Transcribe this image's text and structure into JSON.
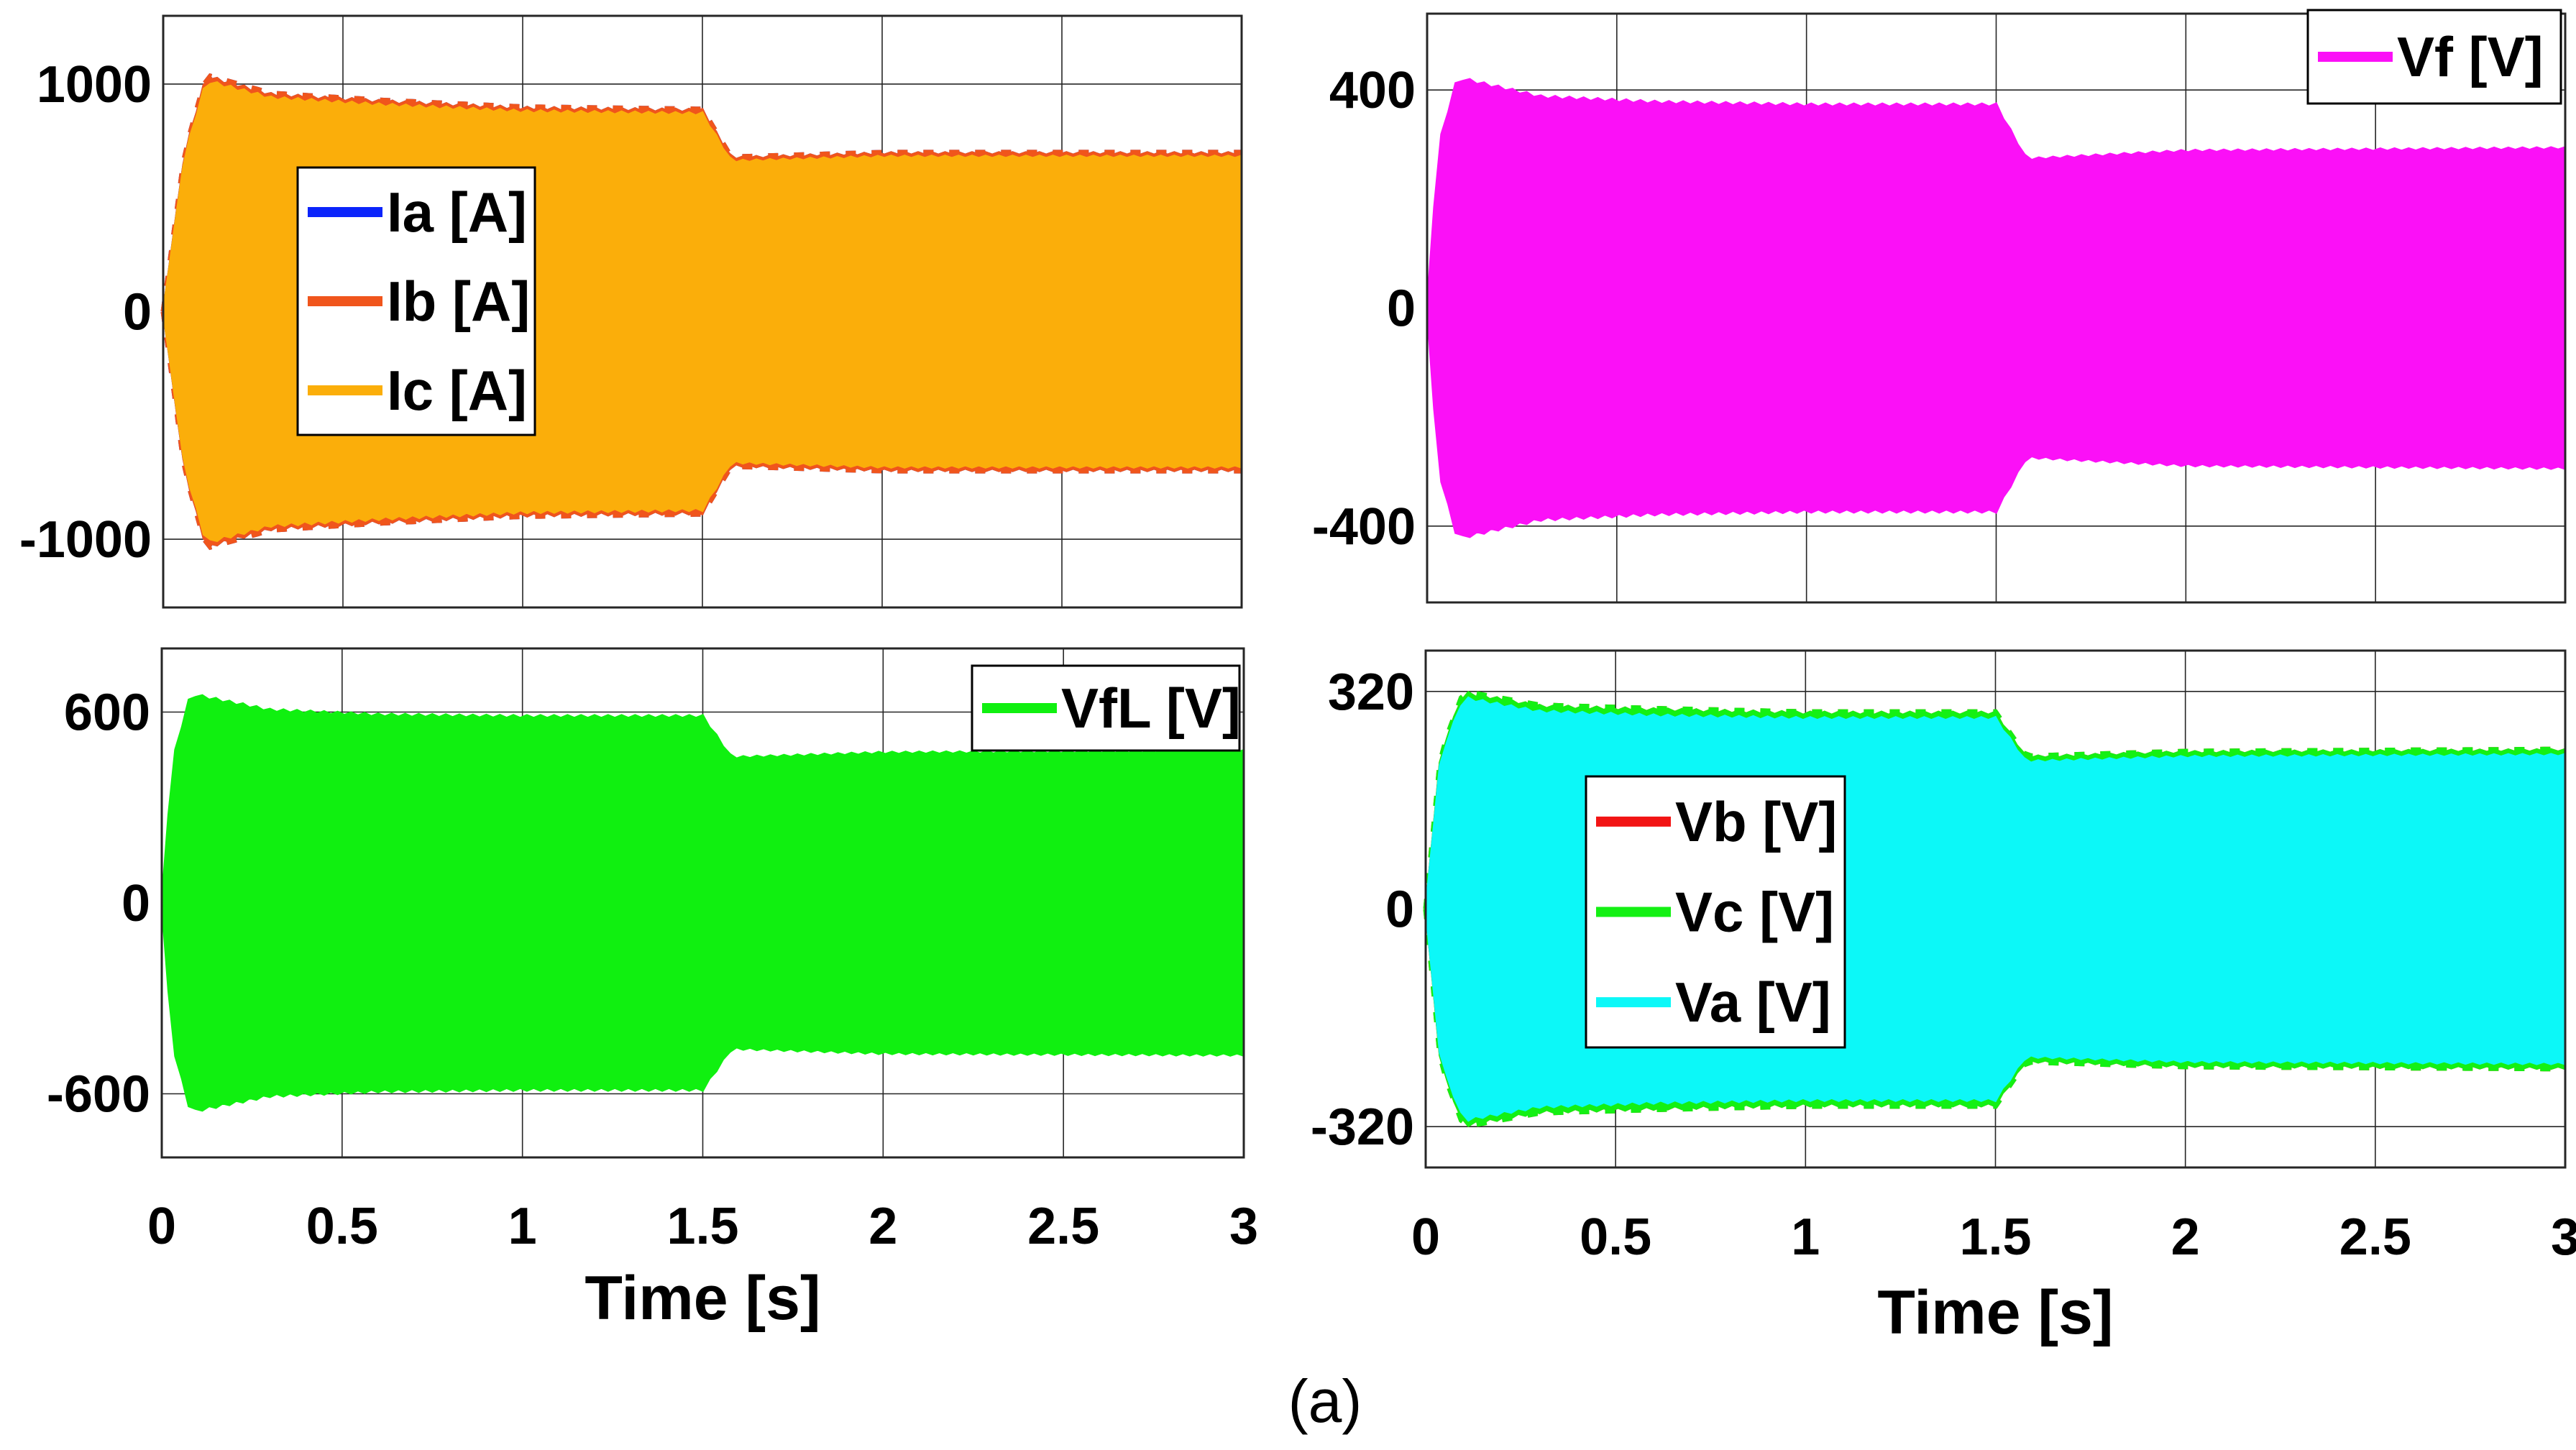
{
  "figure_caption": "(a)",
  "chart_data": [
    {
      "type": "line",
      "name": "phase-currents",
      "title": "",
      "xlabel": "",
      "ylabel": "",
      "xlim": [
        0,
        3
      ],
      "ylim": [
        -1300,
        1300
      ],
      "xticks": [
        0,
        0.5,
        1,
        1.5,
        2,
        2.5,
        3
      ],
      "xtick_labels": [],
      "yticks": [
        -1000,
        0,
        1000
      ],
      "ytick_labels": [
        "-1000",
        "0",
        "1000"
      ],
      "grid": true,
      "legend_position": "center-left",
      "series": [
        {
          "name": "Ia [A]",
          "color": "#0b24fb",
          "envelope": [
            [
              0,
              0
            ],
            [
              0.06,
              700
            ],
            [
              0.12,
              1040
            ],
            [
              0.3,
              960
            ],
            [
              0.6,
              930
            ],
            [
              1.0,
              900
            ],
            [
              1.5,
              890
            ],
            [
              1.58,
              680
            ],
            [
              2.0,
              700
            ],
            [
              3.0,
              700
            ]
          ]
        },
        {
          "name": "Ib [A]",
          "color": "#f0551c",
          "envelope": [
            [
              0,
              0
            ],
            [
              0.06,
              700
            ],
            [
              0.12,
              1040
            ],
            [
              0.3,
              960
            ],
            [
              0.6,
              930
            ],
            [
              1.0,
              900
            ],
            [
              1.5,
              890
            ],
            [
              1.58,
              680
            ],
            [
              2.0,
              700
            ],
            [
              3.0,
              700
            ]
          ]
        },
        {
          "name": "Ic [A]",
          "color": "#fbae0a",
          "envelope": [
            [
              0,
              0
            ],
            [
              0.06,
              690
            ],
            [
              0.12,
              1020
            ],
            [
              0.3,
              945
            ],
            [
              0.6,
              915
            ],
            [
              1.0,
              885
            ],
            [
              1.5,
              875
            ],
            [
              1.58,
              665
            ],
            [
              2.0,
              685
            ],
            [
              3.0,
              685
            ]
          ]
        }
      ]
    },
    {
      "type": "line",
      "name": "filter-voltage-vf",
      "title": "",
      "xlabel": "",
      "ylabel": "",
      "xlim": [
        0,
        3
      ],
      "ylim": [
        -540,
        540
      ],
      "xticks": [
        0,
        0.5,
        1,
        1.5,
        2,
        2.5,
        3
      ],
      "xtick_labels": [],
      "yticks": [
        -400,
        0,
        400
      ],
      "ytick_labels": [
        "-400",
        "0",
        "400"
      ],
      "grid": true,
      "legend_position": "top-right",
      "series": [
        {
          "name": "Vf [V]",
          "color": "#fb10f7",
          "envelope": [
            [
              0,
              0
            ],
            [
              0.03,
              300
            ],
            [
              0.08,
              425
            ],
            [
              0.3,
              390
            ],
            [
              0.6,
              380
            ],
            [
              1.0,
              375
            ],
            [
              1.5,
              375
            ],
            [
              1.58,
              275
            ],
            [
              2.0,
              290
            ],
            [
              3.0,
              295
            ]
          ]
        }
      ]
    },
    {
      "type": "line",
      "name": "line-voltage-vfl",
      "title": "",
      "xlabel": "Time [s]",
      "ylabel": "",
      "xlim": [
        0,
        3
      ],
      "ylim": [
        -800,
        800
      ],
      "xticks": [
        0,
        0.5,
        1,
        1.5,
        2,
        2.5,
        3
      ],
      "xtick_labels": [
        "0",
        "0.5",
        "1",
        "1.5",
        "2",
        "2.5",
        "3"
      ],
      "yticks": [
        -600,
        0,
        600
      ],
      "ytick_labels": [
        "-600",
        "0",
        "600"
      ],
      "grid": true,
      "legend_position": "top-right",
      "series": [
        {
          "name": "VfL [V]",
          "color": "#10f010",
          "envelope": [
            [
              0,
              0
            ],
            [
              0.03,
              450
            ],
            [
              0.08,
              660
            ],
            [
              0.3,
              610
            ],
            [
              0.6,
              595
            ],
            [
              1.0,
              590
            ],
            [
              1.5,
              590
            ],
            [
              1.58,
              460
            ],
            [
              2.0,
              475
            ],
            [
              3.0,
              480
            ]
          ]
        }
      ]
    },
    {
      "type": "line",
      "name": "phase-voltages",
      "title": "",
      "xlabel": "Time [s]",
      "ylabel": "",
      "xlim": [
        0,
        3
      ],
      "ylim": [
        -380,
        380
      ],
      "xticks": [
        0,
        0.5,
        1,
        1.5,
        2,
        2.5,
        3
      ],
      "xtick_labels": [
        "0",
        "0.5",
        "1",
        "1.5",
        "2",
        "2.5",
        "3"
      ],
      "yticks": [
        -320,
        0,
        320
      ],
      "ytick_labels": [
        "-320",
        "0",
        "320"
      ],
      "grid": true,
      "legend_position": "center-left",
      "series": [
        {
          "name": "Vb [V]",
          "color": "#f21414",
          "envelope": [
            [
              0,
              0
            ],
            [
              0.04,
              230
            ],
            [
              0.1,
              320
            ],
            [
              0.3,
              300
            ],
            [
              0.6,
              295
            ],
            [
              1.0,
              290
            ],
            [
              1.5,
              290
            ],
            [
              1.58,
              225
            ],
            [
              2.0,
              232
            ],
            [
              3.0,
              235
            ]
          ]
        },
        {
          "name": "Vc [V]",
          "color": "#14f014",
          "envelope": [
            [
              0,
              0
            ],
            [
              0.04,
              230
            ],
            [
              0.1,
              320
            ],
            [
              0.3,
              300
            ],
            [
              0.6,
              295
            ],
            [
              1.0,
              290
            ],
            [
              1.5,
              290
            ],
            [
              1.58,
              225
            ],
            [
              2.0,
              232
            ],
            [
              3.0,
              235
            ]
          ]
        },
        {
          "name": "Va [V]",
          "color": "#0cf8f8",
          "envelope": [
            [
              0,
              0
            ],
            [
              0.04,
              225
            ],
            [
              0.1,
              312
            ],
            [
              0.3,
              292
            ],
            [
              0.6,
              286
            ],
            [
              1.0,
              282
            ],
            [
              1.5,
              282
            ],
            [
              1.58,
              218
            ],
            [
              2.0,
              225
            ],
            [
              3.0,
              228
            ]
          ]
        }
      ]
    }
  ]
}
